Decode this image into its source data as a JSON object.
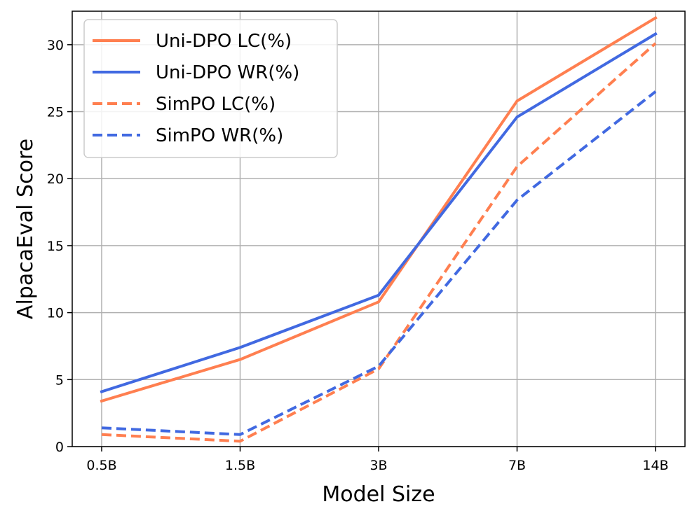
{
  "chart_data": {
    "type": "line",
    "title": "",
    "xlabel": "Model Size",
    "ylabel": "AlpacaEval Score",
    "categories": [
      "0.5B",
      "1.5B",
      "3B",
      "7B",
      "14B"
    ],
    "ylim": [
      0,
      32.5
    ],
    "yticks": [
      0,
      5,
      10,
      15,
      20,
      25,
      30
    ],
    "grid": true,
    "legend_position": "top-left",
    "series": [
      {
        "name": "Uni-DPO LC(%)",
        "color": "#FF7F50",
        "dashed": false,
        "values": [
          3.4,
          6.5,
          10.8,
          25.8,
          32.0
        ]
      },
      {
        "name": "Uni-DPO WR(%)",
        "color": "#4169E1",
        "dashed": false,
        "values": [
          4.1,
          7.4,
          11.3,
          24.6,
          30.8
        ]
      },
      {
        "name": "SimPO LC(%)",
        "color": "#FF7F50",
        "dashed": true,
        "values": [
          0.9,
          0.4,
          5.8,
          20.9,
          30.1
        ]
      },
      {
        "name": "SimPO WR(%)",
        "color": "#4169E1",
        "dashed": true,
        "values": [
          1.4,
          0.9,
          6.0,
          18.4,
          26.5
        ]
      }
    ]
  }
}
